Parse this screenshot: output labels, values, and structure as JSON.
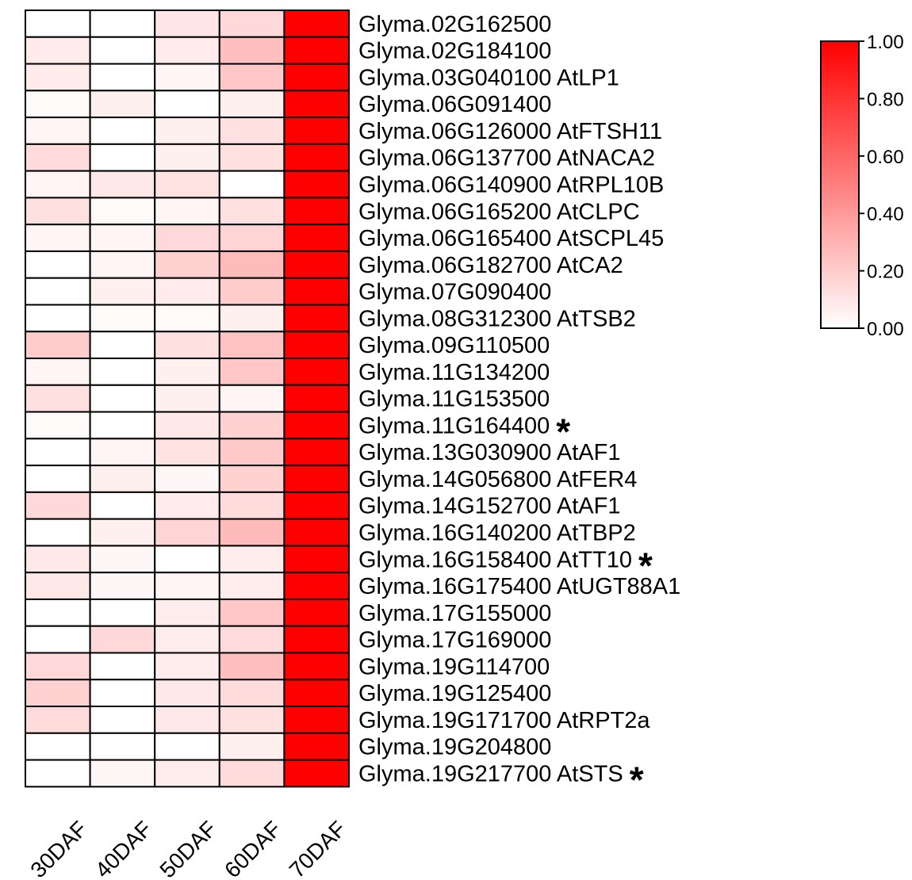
{
  "chart_data": {
    "type": "heatmap",
    "columns": [
      "30DAF",
      "40DAF",
      "50DAF",
      "60DAF",
      "70DAF"
    ],
    "rows": [
      {
        "gene": "Glyma.02G162500",
        "annotation": "",
        "marked": false,
        "values": [
          0.0,
          0.0,
          0.1,
          0.15,
          1.0
        ]
      },
      {
        "gene": "Glyma.02G184100",
        "annotation": "",
        "marked": false,
        "values": [
          0.08,
          0.0,
          0.08,
          0.25,
          1.0
        ]
      },
      {
        "gene": "Glyma.03G040100",
        "annotation": "AtLP1",
        "marked": false,
        "values": [
          0.08,
          0.0,
          0.04,
          0.22,
          1.0
        ]
      },
      {
        "gene": "Glyma.06G091400",
        "annotation": "",
        "marked": false,
        "values": [
          0.02,
          0.06,
          0.0,
          0.06,
          1.0
        ]
      },
      {
        "gene": "Glyma.06G126000",
        "annotation": "AtFTSH11",
        "marked": false,
        "values": [
          0.04,
          0.0,
          0.06,
          0.12,
          1.0
        ]
      },
      {
        "gene": "Glyma.06G137700",
        "annotation": "AtNACA2",
        "marked": false,
        "values": [
          0.14,
          0.0,
          0.06,
          0.12,
          1.0
        ]
      },
      {
        "gene": "Glyma.06G140900",
        "annotation": "AtRPL10B",
        "marked": false,
        "values": [
          0.04,
          0.09,
          0.11,
          0.0,
          1.0
        ]
      },
      {
        "gene": "Glyma.06G165200",
        "annotation": "AtCLPC",
        "marked": false,
        "values": [
          0.12,
          0.02,
          0.04,
          0.12,
          1.0
        ]
      },
      {
        "gene": "Glyma.06G165400",
        "annotation": "AtSCPL45",
        "marked": false,
        "values": [
          0.04,
          0.04,
          0.15,
          0.17,
          1.0
        ]
      },
      {
        "gene": "Glyma.06G182700",
        "annotation": "AtCA2",
        "marked": false,
        "values": [
          0.0,
          0.04,
          0.18,
          0.27,
          1.0
        ]
      },
      {
        "gene": "Glyma.07G090400",
        "annotation": "",
        "marked": false,
        "values": [
          0.0,
          0.06,
          0.08,
          0.2,
          1.0
        ]
      },
      {
        "gene": "Glyma.08G312300",
        "annotation": "AtTSB2",
        "marked": false,
        "values": [
          0.0,
          0.02,
          0.02,
          0.06,
          1.0
        ]
      },
      {
        "gene": "Glyma.09G110500",
        "annotation": "",
        "marked": false,
        "values": [
          0.2,
          0.0,
          0.12,
          0.24,
          1.0
        ]
      },
      {
        "gene": "Glyma.11G134200",
        "annotation": "",
        "marked": false,
        "values": [
          0.04,
          0.0,
          0.06,
          0.22,
          1.0
        ]
      },
      {
        "gene": "Glyma.11G153500",
        "annotation": "",
        "marked": false,
        "values": [
          0.12,
          0.0,
          0.06,
          0.04,
          1.0
        ]
      },
      {
        "gene": "Glyma.11G164400",
        "annotation": "",
        "marked": true,
        "values": [
          0.02,
          0.0,
          0.09,
          0.18,
          1.0
        ]
      },
      {
        "gene": "Glyma.13G030900",
        "annotation": "AtAF1",
        "marked": false,
        "values": [
          0.0,
          0.04,
          0.11,
          0.21,
          1.0
        ]
      },
      {
        "gene": "Glyma.14G056800",
        "annotation": "AtFER4",
        "marked": false,
        "values": [
          0.0,
          0.06,
          0.03,
          0.18,
          1.0
        ]
      },
      {
        "gene": "Glyma.14G152700",
        "annotation": "AtAF1",
        "marked": false,
        "values": [
          0.15,
          0.0,
          0.08,
          0.14,
          1.0
        ]
      },
      {
        "gene": "Glyma.16G140200",
        "annotation": "AtTBP2",
        "marked": false,
        "values": [
          0.0,
          0.06,
          0.17,
          0.27,
          1.0
        ]
      },
      {
        "gene": "Glyma.16G158400",
        "annotation": "AtTT10",
        "marked": true,
        "values": [
          0.09,
          0.03,
          0.0,
          0.07,
          1.0
        ]
      },
      {
        "gene": "Glyma.16G175400",
        "annotation": "AtUGT88A1",
        "marked": false,
        "values": [
          0.09,
          0.03,
          0.04,
          0.07,
          1.0
        ]
      },
      {
        "gene": "Glyma.17G155000",
        "annotation": "",
        "marked": false,
        "values": [
          0.0,
          0.0,
          0.07,
          0.22,
          1.0
        ]
      },
      {
        "gene": "Glyma.17G169000",
        "annotation": "",
        "marked": false,
        "values": [
          0.0,
          0.15,
          0.07,
          0.14,
          1.0
        ]
      },
      {
        "gene": "Glyma.19G114700",
        "annotation": "",
        "marked": false,
        "values": [
          0.15,
          0.0,
          0.07,
          0.25,
          1.0
        ]
      },
      {
        "gene": "Glyma.19G125400",
        "annotation": "",
        "marked": false,
        "values": [
          0.18,
          0.0,
          0.09,
          0.14,
          1.0
        ]
      },
      {
        "gene": "Glyma.19G171700",
        "annotation": "AtRPT2a",
        "marked": false,
        "values": [
          0.14,
          0.0,
          0.09,
          0.12,
          1.0
        ]
      },
      {
        "gene": "Glyma.19G204800",
        "annotation": "",
        "marked": false,
        "values": [
          0.0,
          0.0,
          0.0,
          0.06,
          1.0
        ]
      },
      {
        "gene": "Glyma.19G217700",
        "annotation": "AtSTS",
        "marked": true,
        "values": [
          0.0,
          0.03,
          0.07,
          0.14,
          1.0
        ]
      }
    ],
    "colorbar": {
      "min": 0.0,
      "max": 1.0,
      "ticks": [
        "0.00",
        "0.20",
        "0.40",
        "0.60",
        "0.80",
        "1.00"
      ],
      "low_color": "#ffffff",
      "high_color": "#ff0000"
    },
    "marker_symbol": "*",
    "marker_color": "#e8151b"
  }
}
